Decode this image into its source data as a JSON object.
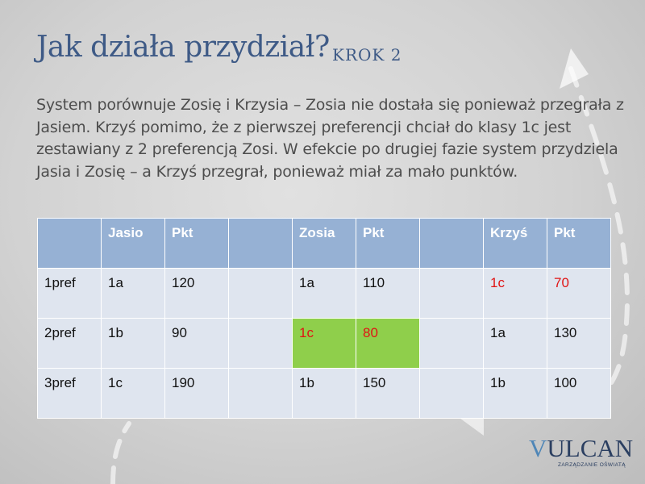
{
  "slide": {
    "title": "Jak działa przydział?",
    "subtitle": "KROK 2",
    "paragraph": "System porównuje Zosię i Krzysia – Zosia nie dostała się ponieważ przegrała z Jasiem. Krzyś pomimo, że z pierwszej preferencji chciał do klasy 1c jest zestawiany z 2 preferencją Zosi.  W efekcie po drugiej fazie system przydziela Jasia i Zosię – a Krzyś przegrał, ponieważ miał za mało punktów."
  },
  "table": {
    "header": [
      "",
      "Jasio",
      "Pkt",
      "",
      "Zosia",
      "Pkt",
      "",
      "Krzyś",
      "Pkt"
    ],
    "rows": [
      [
        "1pref",
        "1a",
        "120",
        "",
        "1a",
        "110",
        "",
        "1c",
        "70"
      ],
      [
        "2pref",
        "1b",
        "90",
        "",
        "1c",
        "80",
        "",
        "1a",
        "130"
      ],
      [
        "3pref",
        "1c",
        "190",
        "",
        "1b",
        "150",
        "",
        "1b",
        "100"
      ]
    ]
  },
  "colors": {
    "title": "#3e5a86",
    "header_bg": "#96b1d4",
    "row_bg": "#dfe5ef",
    "highlight_green": "#8fcf4b",
    "emphasis_red": "#e01414"
  },
  "logo": {
    "first_letter": "V",
    "rest": "ULCAN",
    "tagline": "ZARZĄDZANIE OŚWIATĄ"
  }
}
